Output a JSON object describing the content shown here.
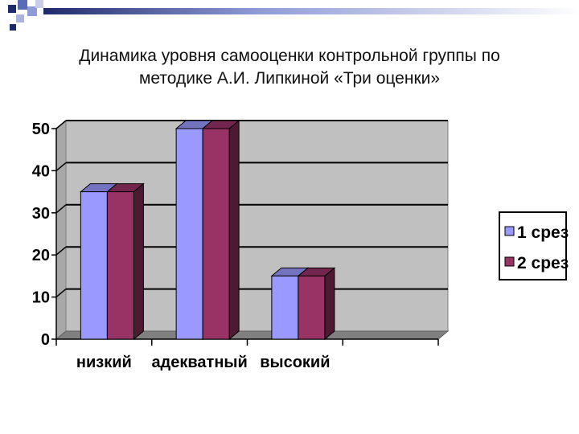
{
  "slide": {
    "title_line1": "Динамика уровня самооценки контрольной  группы по",
    "title_line2": "методике А.И. Липкиной «Три оценки»"
  },
  "chart_data": {
    "type": "bar",
    "categories": [
      "низкий",
      "адекватный",
      "высокий"
    ],
    "series": [
      {
        "name": "1 срез",
        "values": [
          35,
          50,
          15
        ],
        "color": "#9999FF"
      },
      {
        "name": "2 срез",
        "values": [
          35,
          50,
          15
        ],
        "color": "#993366"
      }
    ],
    "y_ticks": [
      "0",
      "10",
      "20",
      "30",
      "40",
      "50"
    ],
    "ylim": [
      0,
      50
    ],
    "grid": true,
    "legend_position": "right",
    "plot_background": "#C0C0C0",
    "style": "3d-clustered"
  }
}
